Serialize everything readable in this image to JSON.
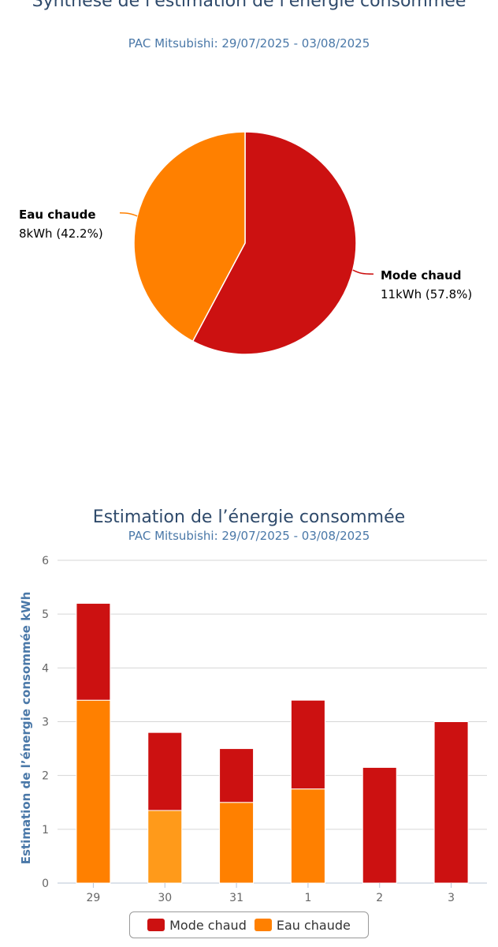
{
  "pie": {
    "title": "Synthèse de l'estimation de l'énergie consommée",
    "subtitle": "PAC Mitsubishi: 29/07/2025 - 03/08/2025"
  },
  "bar": {
    "title": "Estimation de l’énergie consommée",
    "subtitle": "PAC Mitsubishi: 29/07/2025 - 03/08/2025"
  },
  "legend": {
    "mode_chaud": "Mode chaud",
    "eau_chaude": "Eau chaude"
  },
  "colors": {
    "mode_chaud": "#cc1111",
    "eau_chaude": "#ff8000",
    "eau_chaude_light": "#ff9a1a"
  },
  "chart_data": [
    {
      "type": "pie",
      "title": "Synthèse de l'estimation de l'énergie consommée",
      "subtitle": "PAC Mitsubishi: 29/07/2025 - 03/08/2025",
      "slices": [
        {
          "name": "Mode chaud",
          "value": 11,
          "unit": "kWh",
          "percent": 57.8,
          "label": "11kWh (57.8%)"
        },
        {
          "name": "Eau chaude",
          "value": 8,
          "unit": "kWh",
          "percent": 42.2,
          "label": "8kWh (42.2%)"
        }
      ]
    },
    {
      "type": "bar",
      "stacked": true,
      "title": "Estimation de l’énergie consommée",
      "subtitle": "PAC Mitsubishi: 29/07/2025 - 03/08/2025",
      "ylabel": "Estimation de l’énergie consommée kWh",
      "xlabel": "",
      "ylim": [
        0,
        6
      ],
      "yticks": [
        "0",
        "1",
        "2",
        "3",
        "4",
        "5",
        "6"
      ],
      "categories": [
        "29",
        "30",
        "31",
        "1",
        "2",
        "3"
      ],
      "series": [
        {
          "name": "Eau chaude",
          "values": [
            3.4,
            1.35,
            1.5,
            1.75,
            0,
            0
          ]
        },
        {
          "name": "Mode chaud",
          "values": [
            1.8,
            1.45,
            1.0,
            1.65,
            2.15,
            3.0
          ]
        }
      ],
      "grid": true,
      "legend": "bottom"
    }
  ]
}
